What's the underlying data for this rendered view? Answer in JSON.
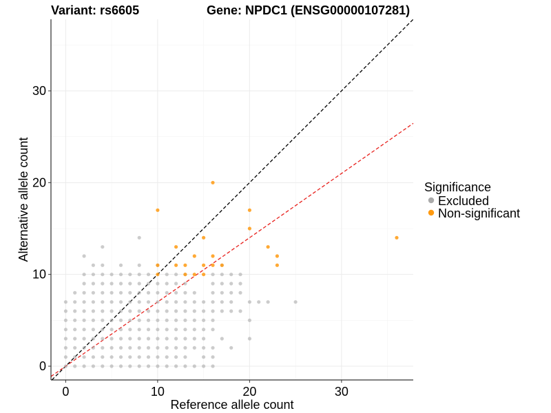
{
  "chart_data": {
    "type": "scatter",
    "title_left": "Variant: rs6605",
    "title_right": "Gene: NPDC1 (ENSG00000107281)",
    "xlabel": "Reference allele count",
    "ylabel": "Alternative allele count",
    "xlim": [
      -1.6,
      37.8
    ],
    "ylim": [
      -1.5,
      37.8
    ],
    "x_ticks": [
      0,
      10,
      20,
      30
    ],
    "y_ticks": [
      0,
      10,
      20,
      30
    ],
    "x_tick_labels": [
      "0",
      "10",
      "20",
      "30"
    ],
    "y_tick_labels": [
      "0",
      "10",
      "20",
      "30"
    ],
    "grid": true,
    "legend": {
      "title": "Significance",
      "position": "right",
      "entries": [
        {
          "label": "Excluded",
          "color": "#aaaaaa"
        },
        {
          "label": "Non-significant",
          "color": "#ff9a10"
        }
      ]
    },
    "reference_lines": [
      {
        "name": "identity-line",
        "slope": 1.0,
        "intercept": 0,
        "color": "#000000",
        "dash": "dashed"
      },
      {
        "name": "fit-line",
        "slope": 0.7,
        "intercept": 0,
        "color": "#e8201c",
        "dash": "dashed"
      }
    ],
    "series": [
      {
        "name": "Excluded",
        "color": "#aaaaaa",
        "points": [
          [
            0,
            0
          ],
          [
            1,
            0
          ],
          [
            2,
            0
          ],
          [
            3,
            0
          ],
          [
            4,
            0
          ],
          [
            5,
            0
          ],
          [
            6,
            0
          ],
          [
            7,
            0
          ],
          [
            8,
            0
          ],
          [
            9,
            0
          ],
          [
            10,
            0
          ],
          [
            11,
            0
          ],
          [
            12,
            0
          ],
          [
            13,
            0
          ],
          [
            14,
            0
          ],
          [
            15,
            0
          ],
          [
            0,
            1
          ],
          [
            1,
            1
          ],
          [
            2,
            1
          ],
          [
            3,
            1
          ],
          [
            4,
            1
          ],
          [
            5,
            1
          ],
          [
            6,
            1
          ],
          [
            7,
            1
          ],
          [
            8,
            1
          ],
          [
            9,
            1
          ],
          [
            10,
            1
          ],
          [
            11,
            1
          ],
          [
            12,
            1
          ],
          [
            13,
            1
          ],
          [
            15,
            1
          ],
          [
            0,
            2
          ],
          [
            1,
            2
          ],
          [
            2,
            2
          ],
          [
            3,
            2
          ],
          [
            4,
            2
          ],
          [
            5,
            2
          ],
          [
            6,
            2
          ],
          [
            7,
            2
          ],
          [
            8,
            2
          ],
          [
            9,
            2
          ],
          [
            10,
            2
          ],
          [
            11,
            2
          ],
          [
            12,
            2
          ],
          [
            13,
            2
          ],
          [
            14,
            2
          ],
          [
            15,
            2
          ],
          [
            0,
            3
          ],
          [
            1,
            3
          ],
          [
            2,
            3
          ],
          [
            3,
            3
          ],
          [
            4,
            3
          ],
          [
            5,
            3
          ],
          [
            6,
            3
          ],
          [
            7,
            3
          ],
          [
            8,
            3
          ],
          [
            9,
            3
          ],
          [
            10,
            3
          ],
          [
            11,
            3
          ],
          [
            12,
            3
          ],
          [
            13,
            3
          ],
          [
            14,
            3
          ],
          [
            15,
            3
          ],
          [
            0,
            4
          ],
          [
            1,
            4
          ],
          [
            2,
            4
          ],
          [
            3,
            4
          ],
          [
            4,
            4
          ],
          [
            5,
            4
          ],
          [
            6,
            4
          ],
          [
            7,
            4
          ],
          [
            8,
            4
          ],
          [
            9,
            4
          ],
          [
            10,
            4
          ],
          [
            11,
            4
          ],
          [
            12,
            4
          ],
          [
            13,
            4
          ],
          [
            14,
            4
          ],
          [
            15,
            4
          ],
          [
            0,
            5
          ],
          [
            1,
            5
          ],
          [
            2,
            5
          ],
          [
            3,
            5
          ],
          [
            4,
            5
          ],
          [
            5,
            5
          ],
          [
            6,
            5
          ],
          [
            7,
            5
          ],
          [
            8,
            5
          ],
          [
            9,
            5
          ],
          [
            10,
            5
          ],
          [
            11,
            5
          ],
          [
            12,
            5
          ],
          [
            13,
            5
          ],
          [
            14,
            5
          ],
          [
            15,
            5
          ],
          [
            0,
            6
          ],
          [
            1,
            6
          ],
          [
            2,
            6
          ],
          [
            3,
            6
          ],
          [
            4,
            6
          ],
          [
            5,
            6
          ],
          [
            6,
            6
          ],
          [
            7,
            6
          ],
          [
            8,
            6
          ],
          [
            9,
            6
          ],
          [
            10,
            6
          ],
          [
            11,
            6
          ],
          [
            12,
            6
          ],
          [
            13,
            6
          ],
          [
            14,
            6
          ],
          [
            15,
            6
          ],
          [
            0,
            7
          ],
          [
            1,
            7
          ],
          [
            2,
            7
          ],
          [
            3,
            7
          ],
          [
            4,
            7
          ],
          [
            5,
            7
          ],
          [
            6,
            7
          ],
          [
            7,
            7
          ],
          [
            8,
            7
          ],
          [
            9,
            7
          ],
          [
            10,
            7
          ],
          [
            11,
            7
          ],
          [
            12,
            7
          ],
          [
            13,
            7
          ],
          [
            14,
            7
          ],
          [
            15,
            7
          ],
          [
            1,
            8
          ],
          [
            2,
            8
          ],
          [
            3,
            8
          ],
          [
            4,
            8
          ],
          [
            5,
            8
          ],
          [
            6,
            8
          ],
          [
            7,
            8
          ],
          [
            8,
            8
          ],
          [
            9,
            8
          ],
          [
            10,
            8
          ],
          [
            11,
            8
          ],
          [
            12,
            8
          ],
          [
            13,
            8
          ],
          [
            14,
            8
          ],
          [
            2,
            9
          ],
          [
            3,
            9
          ],
          [
            4,
            9
          ],
          [
            5,
            9
          ],
          [
            6,
            9
          ],
          [
            7,
            9
          ],
          [
            8,
            9
          ],
          [
            9,
            9
          ],
          [
            10,
            9
          ],
          [
            11,
            9
          ],
          [
            12,
            9
          ],
          [
            13,
            9
          ],
          [
            2,
            10
          ],
          [
            3,
            10
          ],
          [
            4,
            10
          ],
          [
            5,
            10
          ],
          [
            6,
            10
          ],
          [
            7,
            10
          ],
          [
            8,
            10
          ],
          [
            9,
            10
          ],
          [
            11,
            10
          ],
          [
            12,
            10
          ],
          [
            13,
            10
          ],
          [
            3,
            11
          ],
          [
            4,
            11
          ],
          [
            6,
            11
          ],
          [
            8,
            11
          ],
          [
            10,
            11
          ],
          [
            2,
            12
          ],
          [
            4,
            13
          ],
          [
            8,
            14
          ],
          [
            16,
            0
          ],
          [
            16,
            1
          ],
          [
            16,
            2
          ],
          [
            16,
            4
          ],
          [
            16,
            5
          ],
          [
            16,
            6
          ],
          [
            16,
            7
          ],
          [
            16,
            8
          ],
          [
            16,
            9
          ],
          [
            16,
            10
          ],
          [
            17,
            3
          ],
          [
            17,
            6
          ],
          [
            17,
            7
          ],
          [
            17,
            8
          ],
          [
            17,
            9
          ],
          [
            17,
            10
          ],
          [
            17,
            11
          ],
          [
            18,
            2
          ],
          [
            18,
            6
          ],
          [
            18,
            7
          ],
          [
            18,
            8
          ],
          [
            18,
            9
          ],
          [
            18,
            10
          ],
          [
            19,
            6
          ],
          [
            19,
            8
          ],
          [
            19,
            9
          ],
          [
            19,
            10
          ],
          [
            20,
            3
          ],
          [
            20,
            5
          ],
          [
            20,
            7
          ],
          [
            21,
            7
          ],
          [
            22,
            7
          ],
          [
            25,
            7
          ]
        ]
      },
      {
        "name": "Non-significant",
        "color": "#ff9a10",
        "points": [
          [
            10,
            17
          ],
          [
            10,
            11
          ],
          [
            10,
            10
          ],
          [
            12,
            13
          ],
          [
            12,
            11
          ],
          [
            13,
            11
          ],
          [
            13,
            10
          ],
          [
            14,
            12
          ],
          [
            14,
            10
          ],
          [
            15,
            14
          ],
          [
            15,
            11
          ],
          [
            15,
            10
          ],
          [
            16,
            20
          ],
          [
            16,
            12
          ],
          [
            16,
            11
          ],
          [
            17,
            11
          ],
          [
            20,
            17
          ],
          [
            20,
            15
          ],
          [
            22,
            13
          ],
          [
            23,
            12
          ],
          [
            23,
            11
          ],
          [
            36,
            14
          ]
        ]
      }
    ]
  }
}
